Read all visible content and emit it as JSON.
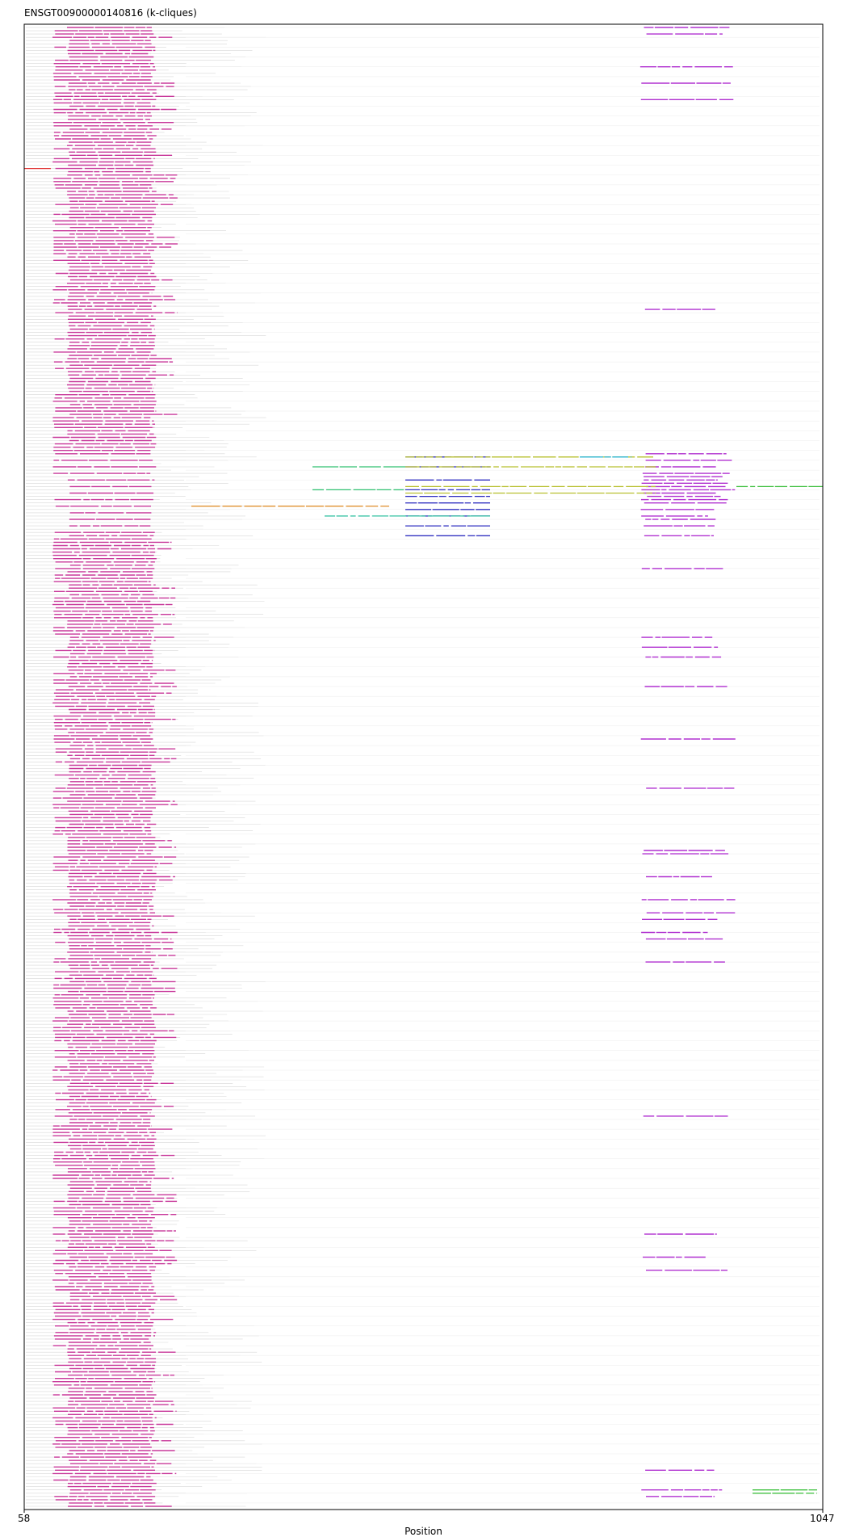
{
  "chart_data": {
    "type": "alignment-map",
    "title": "ENSGT00900000140816 (k-cliques)",
    "xlabel": "Position",
    "xlim": [
      58,
      1047
    ],
    "x_tick_labels": [
      "58",
      "1047"
    ],
    "row_count": 452,
    "grid": false,
    "colors": {
      "background_gap": "#d8d8d8",
      "magenta": "#c8389a",
      "purple": "#b030d0",
      "green": "#30c070",
      "bright_green": "#40c040",
      "blue": "#3030c0",
      "yellow": "#b8c030",
      "cyan": "#30b8d8",
      "orange": "#e09030",
      "teal": "#30c0a0",
      "red": "#e03030"
    },
    "clique_blocks": [
      {
        "color": "magenta",
        "x": [
          93,
          222
        ],
        "rows": "most"
      },
      {
        "color": "purple",
        "x": [
          820,
          930
        ],
        "rows": "subset"
      },
      {
        "color": "green",
        "x": [
          415,
          530
        ],
        "rows": [
          134,
          141
        ]
      },
      {
        "color": "blue",
        "x": [
          530,
          635
        ],
        "rows": [
          131,
          134,
          138,
          141,
          143,
          145,
          147,
          149,
          152,
          155
        ]
      },
      {
        "color": "yellow",
        "x": [
          530,
          840
        ],
        "rows": [
          131,
          134,
          140,
          142
        ]
      },
      {
        "color": "cyan",
        "x": [
          746,
          810
        ],
        "rows": [
          131
        ]
      },
      {
        "color": "orange",
        "x": [
          265,
          510
        ],
        "rows": [
          146
        ]
      },
      {
        "color": "teal",
        "x": [
          430,
          635
        ],
        "rows": [
          149
        ]
      },
      {
        "color": "bright_green",
        "x": [
          940,
          1047
        ],
        "rows": [
          140
        ]
      },
      {
        "color": "bright_green",
        "x": [
          960,
          1040
        ],
        "rows": [
          446,
          447
        ]
      },
      {
        "color": "red",
        "x": [
          58,
          92
        ],
        "rows": [
          43
        ]
      }
    ]
  }
}
